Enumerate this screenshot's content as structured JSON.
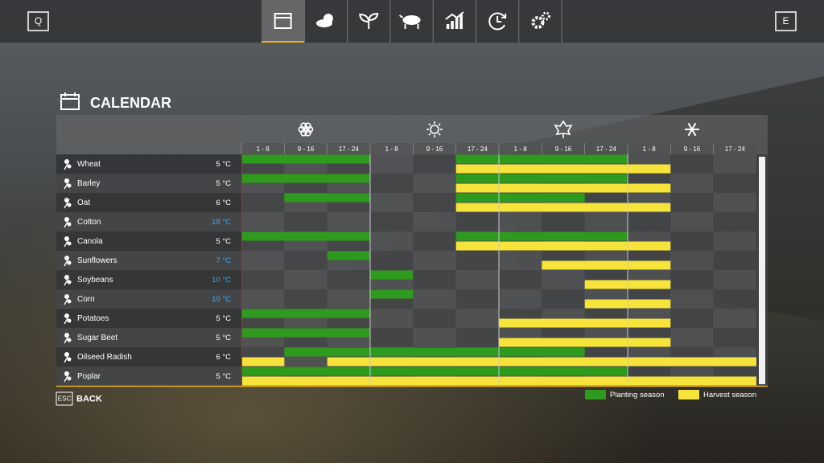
{
  "top_bar": {
    "left_key": "Q",
    "right_key": "E"
  },
  "title": "CALENDAR",
  "periods": [
    "1 - 8",
    "9 - 16",
    "17 - 24",
    "1 - 8",
    "9 - 16",
    "17 - 24",
    "1 - 8",
    "9 - 16",
    "17 - 24",
    "1 - 8",
    "9 - 16",
    "17 - 24"
  ],
  "crops": [
    {
      "name": "Wheat",
      "temperature": "5 °C",
      "temperature_color": "#ffffff",
      "planting": [
        [
          1,
          3
        ],
        [
          6,
          9
        ]
      ],
      "harvest": [
        [
          6,
          10
        ]
      ]
    },
    {
      "name": "Barley",
      "temperature": "5 °C",
      "temperature_color": "#ffffff",
      "planting": [
        [
          1,
          3
        ],
        [
          6,
          9
        ]
      ],
      "harvest": [
        [
          6,
          10
        ]
      ]
    },
    {
      "name": "Oat",
      "temperature": "6 °C",
      "temperature_color": "#ffffff",
      "planting": [
        [
          2,
          3
        ],
        [
          6,
          8
        ]
      ],
      "harvest": [
        [
          6,
          10
        ]
      ]
    },
    {
      "name": "Cotton",
      "temperature": "18 °C",
      "temperature_color": "#3fa6ec",
      "planting": [],
      "harvest": []
    },
    {
      "name": "Canola",
      "temperature": "5 °C",
      "temperature_color": "#ffffff",
      "planting": [
        [
          1,
          3
        ],
        [
          6,
          9
        ]
      ],
      "harvest": [
        [
          6,
          10
        ]
      ]
    },
    {
      "name": "Sunflowers",
      "temperature": "7 °C",
      "temperature_color": "#3fa6ec",
      "planting": [
        [
          3,
          3
        ]
      ],
      "harvest": [
        [
          8,
          10
        ]
      ]
    },
    {
      "name": "Soybeans",
      "temperature": "10 °C",
      "temperature_color": "#3fa6ec",
      "planting": [
        [
          4,
          4
        ]
      ],
      "harvest": [
        [
          9,
          10
        ]
      ]
    },
    {
      "name": "Corn",
      "temperature": "10 °C",
      "temperature_color": "#3fa6ec",
      "planting": [
        [
          4,
          4
        ]
      ],
      "harvest": [
        [
          9,
          10
        ]
      ]
    },
    {
      "name": "Potatoes",
      "temperature": "5 °C",
      "temperature_color": "#ffffff",
      "planting": [
        [
          1,
          3
        ]
      ],
      "harvest": [
        [
          7,
          10
        ]
      ]
    },
    {
      "name": "Sugar Beet",
      "temperature": "5 °C",
      "temperature_color": "#ffffff",
      "planting": [
        [
          1,
          3
        ]
      ],
      "harvest": [
        [
          7,
          10
        ]
      ]
    },
    {
      "name": "Oilseed Radish",
      "temperature": "6 °C",
      "temperature_color": "#ffffff",
      "planting": [
        [
          2,
          8
        ]
      ],
      "harvest": [
        [
          1,
          1
        ],
        [
          3,
          12
        ]
      ]
    },
    {
      "name": "Poplar",
      "temperature": "5 °C",
      "temperature_color": "#ffffff",
      "planting": [
        [
          1,
          9
        ]
      ],
      "harvest": [
        [
          1,
          12
        ]
      ]
    }
  ],
  "legend": {
    "planting": {
      "label": "Planting season",
      "color": "#2e9a1e"
    },
    "harvest": {
      "label": "Harvest season",
      "color": "#f6e43a"
    }
  },
  "footer": {
    "key": "ESC",
    "label": "BACK"
  }
}
